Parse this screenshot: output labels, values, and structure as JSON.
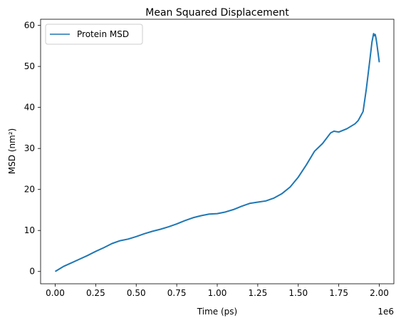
{
  "chart_data": {
    "type": "line",
    "title": "Mean Squared Displacement",
    "xlabel": "Time (ps)",
    "ylabel": "MSD (nm²)",
    "x_offset_text": "1e6",
    "xlim": [
      -90000,
      2090000
    ],
    "ylim": [
      -3,
      61.5
    ],
    "x_ticks": [
      0,
      250000,
      500000,
      750000,
      1000000,
      1250000,
      1500000,
      1750000,
      2000000
    ],
    "x_tick_labels": [
      "0.00",
      "0.25",
      "0.50",
      "0.75",
      "1.00",
      "1.25",
      "1.50",
      "1.75",
      "2.00"
    ],
    "y_ticks": [
      0,
      10,
      20,
      30,
      40,
      50,
      60
    ],
    "y_tick_labels": [
      "0",
      "10",
      "20",
      "30",
      "40",
      "50",
      "60"
    ],
    "grid": false,
    "legend_position": "upper-left",
    "series": [
      {
        "name": "Protein MSD",
        "color": "#1f77b4",
        "x": [
          0,
          50000,
          100000,
          150000,
          200000,
          250000,
          300000,
          350000,
          400000,
          450000,
          500000,
          550000,
          600000,
          650000,
          700000,
          750000,
          800000,
          850000,
          900000,
          950000,
          1000000,
          1050000,
          1100000,
          1150000,
          1200000,
          1250000,
          1300000,
          1350000,
          1400000,
          1450000,
          1500000,
          1550000,
          1600000,
          1650000,
          1700000,
          1720000,
          1750000,
          1800000,
          1850000,
          1870000,
          1900000,
          1920000,
          1940000,
          1955000,
          1965000,
          1970000,
          1975000,
          1980000,
          1985000,
          1990000,
          1995000,
          2000000
        ],
        "y": [
          0,
          1.2,
          2.1,
          3.0,
          3.9,
          4.9,
          5.8,
          6.8,
          7.5,
          7.9,
          8.5,
          9.2,
          9.8,
          10.3,
          10.9,
          11.6,
          12.4,
          13.1,
          13.6,
          14.0,
          14.1,
          14.5,
          15.1,
          15.9,
          16.6,
          16.9,
          17.2,
          17.9,
          19.0,
          20.6,
          23.0,
          26.0,
          29.3,
          31.2,
          33.8,
          34.2,
          34.0,
          34.8,
          36.0,
          36.8,
          39.0,
          44.5,
          51.0,
          56.0,
          58.0,
          57.5,
          57.8,
          56.8,
          55.5,
          54.0,
          52.5,
          51.0
        ]
      }
    ]
  }
}
